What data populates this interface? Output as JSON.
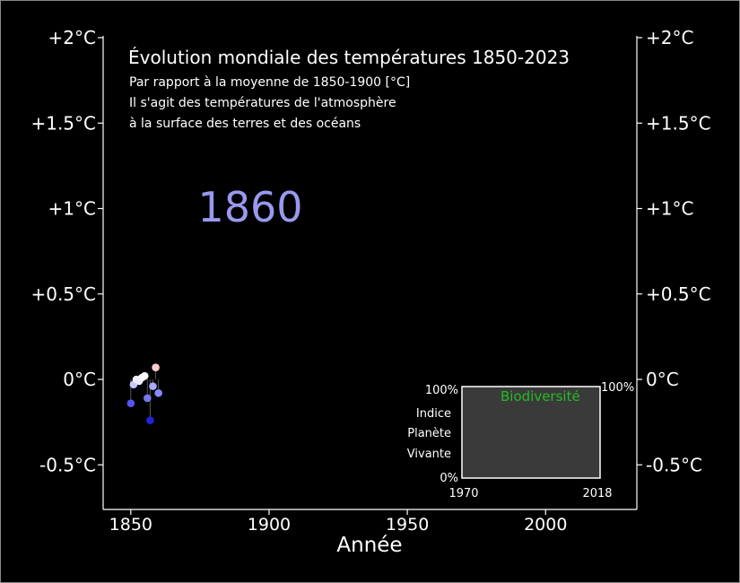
{
  "chart_data": {
    "type": "scatter",
    "title": "Évolution mondiale des températures 1850-2023",
    "subtitle_lines": [
      "Par rapport à la moyenne de 1850-1900 [°C]",
      "Il s'agit des températures de l'atmosphère",
      "à la surface des terres et des océans"
    ],
    "current_year_label": "1860",
    "xlabel": "Année",
    "xlim": [
      1840,
      2033
    ],
    "ylim": [
      -0.75,
      2.0
    ],
    "x_ticks": [
      {
        "value": 1850,
        "label": "1850"
      },
      {
        "value": 1900,
        "label": "1900"
      },
      {
        "value": 1950,
        "label": "1950"
      },
      {
        "value": 2000,
        "label": "2000"
      }
    ],
    "y_ticks": [
      {
        "value": 2.0,
        "label": "+2°C"
      },
      {
        "value": 1.5,
        "label": "+1.5°C"
      },
      {
        "value": 1.0,
        "label": "+1°C"
      },
      {
        "value": 0.5,
        "label": "+0.5°C"
      },
      {
        "value": 0.0,
        "label": "0°C"
      },
      {
        "value": -0.5,
        "label": "-0.5°C"
      }
    ],
    "grid": false,
    "points": [
      {
        "x": 1850,
        "y": -0.14,
        "color": "#5555ee"
      },
      {
        "x": 1851,
        "y": -0.03,
        "color": "#c8c8ff"
      },
      {
        "x": 1852,
        "y": 0.0,
        "color": "#f0f0ff"
      },
      {
        "x": 1853,
        "y": -0.01,
        "color": "#e8e8ff"
      },
      {
        "x": 1854,
        "y": 0.01,
        "color": "#f4f4ff"
      },
      {
        "x": 1855,
        "y": 0.02,
        "color": "#ffffff"
      },
      {
        "x": 1856,
        "y": -0.11,
        "color": "#7777ee"
      },
      {
        "x": 1857,
        "y": -0.24,
        "color": "#2222dd"
      },
      {
        "x": 1858,
        "y": -0.04,
        "color": "#aaaaff"
      },
      {
        "x": 1859,
        "y": 0.07,
        "color": "#ffcccc"
      },
      {
        "x": 1860,
        "y": -0.08,
        "color": "#8888ff"
      }
    ],
    "current_year_color": "#9999ee"
  },
  "inset": {
    "label_lines": [
      "Indice",
      "Planète",
      "Vivante"
    ],
    "y_top_label": "100%",
    "y_bottom_label": "0%",
    "right_label": "100%",
    "x_start_label": "1970",
    "x_end_label": "2018",
    "series_label": "Biodiversité",
    "series_color": "#22bb22",
    "panel_color": "#3a3a3a"
  }
}
